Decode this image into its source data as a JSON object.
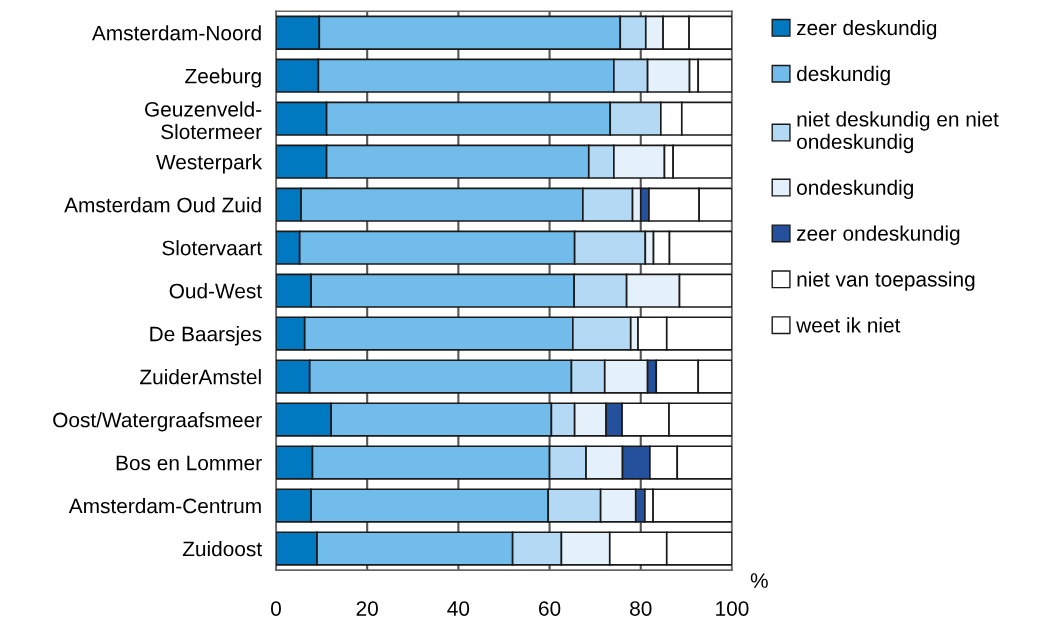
{
  "chart_data": {
    "type": "bar",
    "orientation": "horizontal",
    "stacked": true,
    "xlabel": "%",
    "categories": [
      "Amsterdam-Noord",
      "Zeeburg",
      "Geuzenveld-\nSlotermeer",
      "Westerpark",
      "Amsterdam Oud Zuid",
      "Slotervaart",
      "Oud-West",
      "De Baarsjes",
      "ZuiderAmstel",
      "Oost/Watergraafsmeer",
      "Bos en Lommer",
      "Amsterdam-Centrum",
      "Zuidoost"
    ],
    "series": [
      {
        "name": "zeer deskundig",
        "color": "#0079c1",
        "values": [
          9.5,
          9.3,
          11.1,
          11.1,
          5.5,
          5.2,
          7.7,
          6.3,
          7.4,
          12.1,
          8.0,
          7.7,
          9.0
        ]
      },
      {
        "name": "deskundig",
        "color": "#71bceb",
        "values": [
          66.0,
          64.8,
          62.2,
          57.5,
          61.8,
          60.3,
          57.7,
          58.8,
          57.4,
          48.3,
          52.0,
          52.0,
          42.9
        ]
      },
      {
        "name": "niet deskundig en niet\nondeskundig",
        "color": "#b3d9f4",
        "values": [
          5.6,
          7.4,
          11.1,
          5.5,
          10.9,
          15.5,
          11.5,
          12.7,
          7.3,
          5.1,
          8.0,
          11.5,
          10.7
        ]
      },
      {
        "name": "ondeskundig",
        "color": "#e4f1fb",
        "values": [
          3.8,
          9.2,
          0,
          11.1,
          1.8,
          1.8,
          11.6,
          1.6,
          9.4,
          6.9,
          8.0,
          7.7,
          10.6
        ]
      },
      {
        "name": "zeer ondeskundig",
        "color": "#25509c",
        "values": [
          0,
          0,
          0,
          0,
          1.8,
          0,
          0,
          0,
          1.9,
          3.5,
          6.0,
          2.0,
          0
        ]
      },
      {
        "name": "niet van toepassing",
        "color": "#ffffff",
        "values": [
          5.7,
          1.9,
          4.6,
          1.9,
          11.0,
          3.5,
          0,
          6.3,
          9.2,
          10.3,
          6.0,
          1.8,
          12.5
        ]
      },
      {
        "name": "weet ik niet",
        "color": "#ffffff",
        "values": [
          9.4,
          7.4,
          11.0,
          12.9,
          7.2,
          13.7,
          11.5,
          14.3,
          7.4,
          13.8,
          12.0,
          17.3,
          14.3
        ]
      }
    ],
    "xlim": [
      0,
      100
    ],
    "xticks": [
      0,
      20,
      40,
      60,
      80,
      100
    ],
    "grid": "x",
    "legend": "right"
  }
}
